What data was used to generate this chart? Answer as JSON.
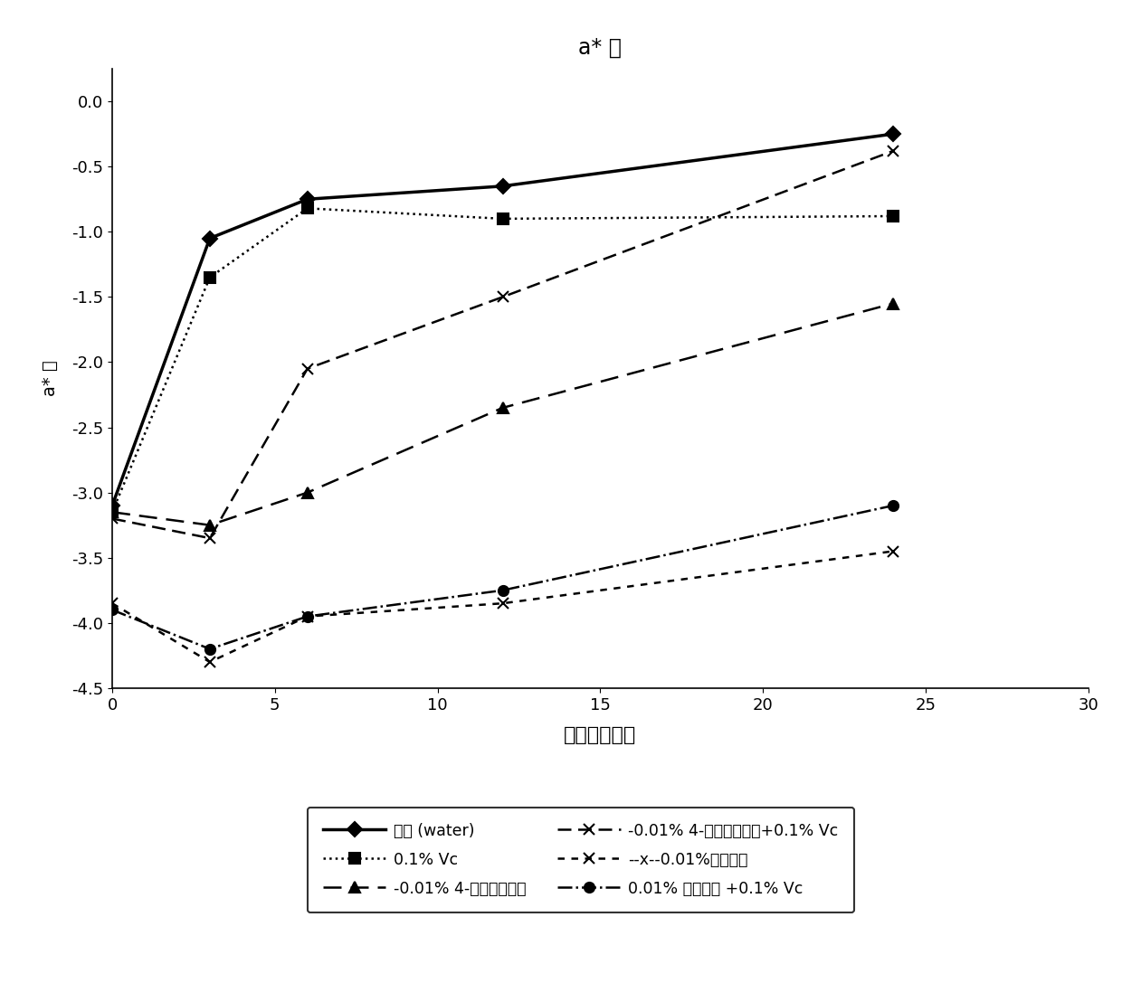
{
  "title": "a* 值",
  "xlabel": "时间（小时）",
  "ylabel": "a* 值",
  "xlim": [
    0,
    30
  ],
  "ylim": [
    -4.5,
    0.25
  ],
  "xticks": [
    0,
    5,
    10,
    15,
    20,
    25,
    30
  ],
  "yticks": [
    0,
    -0.5,
    -1.0,
    -1.5,
    -2.0,
    -2.5,
    -3.0,
    -3.5,
    -4.0,
    -4.5
  ],
  "x_timepoints": [
    0,
    3,
    6,
    12,
    24
  ],
  "series": [
    {
      "label_cn": "对照 (water)",
      "label_legend": "对照 (water)",
      "y": [
        -3.1,
        -1.05,
        -0.75,
        -0.65,
        -0.25
      ],
      "linestyle": "-",
      "marker": "D",
      "markersize": 8,
      "linewidth": 2.5,
      "dashes": null
    },
    {
      "label_cn": "0.1% Vc",
      "label_legend": "0.1% Vc",
      "y": [
        -3.15,
        -1.35,
        -0.82,
        -0.9,
        -0.88
      ],
      "linestyle": ":",
      "marker": "s",
      "markersize": 8,
      "linewidth": 1.8,
      "dashes": null
    },
    {
      "label_cn": "-0.01% 4-己基间苯二酚",
      "label_legend": "-0.01% 4-己基间苯二酚",
      "y": [
        -3.15,
        -3.25,
        -3.0,
        -2.35,
        -1.55
      ],
      "linestyle": "--",
      "marker": "^",
      "markersize": 8,
      "linewidth": 1.8,
      "dashes": [
        8,
        4
      ]
    },
    {
      "label_cn": "-0.01% 4-己基间苯二酚+0.1% Vc",
      "label_legend": "-0.01% 4-己基间苯二酚+0.1% Vc",
      "y": [
        -3.2,
        -3.35,
        -2.05,
        -1.5,
        -0.38
      ],
      "linestyle": "--",
      "marker": "x",
      "markersize": 9,
      "linewidth": 1.8,
      "dashes": [
        6,
        3
      ]
    },
    {
      "label_cn": "--x--0.01%有效部位",
      "label_legend": "--x--0.01%有效部位",
      "y": [
        -3.85,
        -4.3,
        -3.95,
        -3.85,
        -3.45
      ],
      "linestyle": "--",
      "marker": "x",
      "markersize": 9,
      "linewidth": 1.8,
      "dashes": [
        3,
        3
      ]
    },
    {
      "label_cn": "0.01% 有效部位 +0.1% Vc",
      "label_legend": "0.01% 有效部位 +0.1% Vc",
      "y": [
        -3.9,
        -4.2,
        -3.95,
        -3.75,
        -3.1
      ],
      "linestyle": "-.",
      "marker": "o",
      "markersize": 8,
      "linewidth": 1.8,
      "dashes": null
    }
  ],
  "legend_col1_indices": [
    0,
    2,
    4
  ],
  "legend_col2_indices": [
    1,
    3,
    5
  ]
}
